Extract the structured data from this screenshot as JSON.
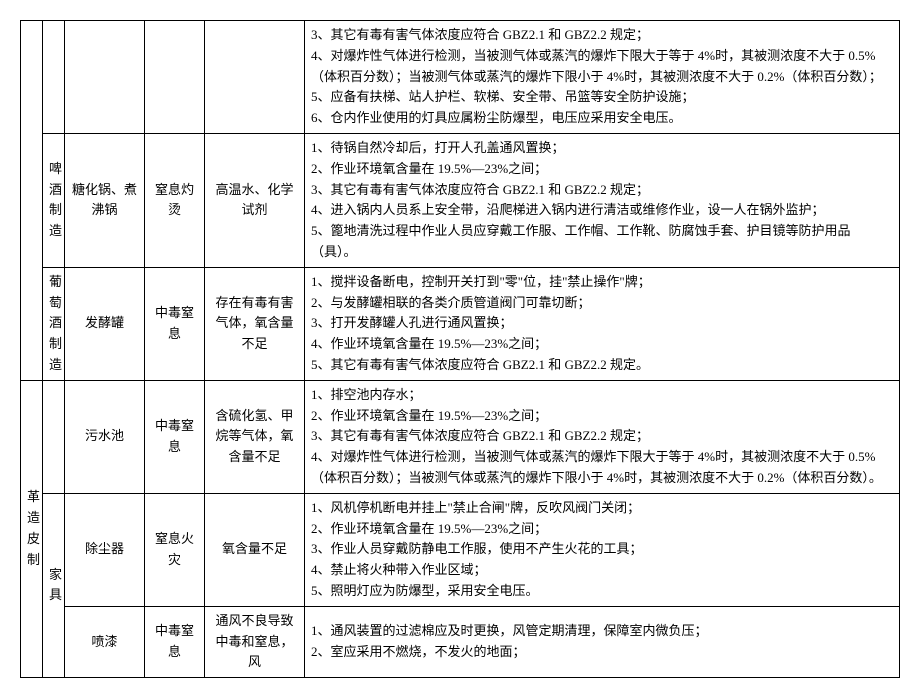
{
  "rows": [
    {
      "c0": "",
      "c1": "",
      "c2": "",
      "c3": "",
      "c4": "",
      "c5": "3、其它有毒有害气体浓度应符合 GBZ2.1 和 GBZ2.2 规定；\n4、对爆炸性气体进行检测，当被测气体或蒸汽的爆炸下限大于等于 4%时，其被测浓度不大于 0.5%（体积百分数）；当被测气体或蒸汽的爆炸下限小于 4%时，其被测浓度不大于 0.2%（体积百分数）；\n5、应备有扶梯、站人护栏、软梯、安全带、吊篮等安全防护设施；\n6、仓内作业使用的灯具应属粉尘防爆型，电压应采用安全电压。"
    },
    {
      "c0": "",
      "c1": "啤酒制造",
      "c2": "糖化锅、煮沸锅",
      "c3": "窒息灼烫",
      "c4": "高温水、化学试剂",
      "c5": "1、待锅自然冷却后，打开人孔盖通风置换；\n2、作业环境氧含量在 19.5%—23%之间；\n3、其它有毒有害气体浓度应符合 GBZ2.1 和 GBZ2.2 规定；\n4、进入锅内人员系上安全带，沿爬梯进入锅内进行清洁或维修作业，设一人在锅外监护；\n5、篦地清洗过程中作业人员应穿戴工作服、工作帽、工作靴、防腐蚀手套、护目镜等防护用品（具）。"
    },
    {
      "c0": "",
      "c1": "葡萄酒制造",
      "c2": "发酵罐",
      "c3": "中毒窒息",
      "c4": "存在有毒有害气体，氧含量不足",
      "c5": "1、搅拌设备断电，控制开关打到\"零\"位，挂\"禁止操作\"牌；\n2、与发酵罐相联的各类介质管道阀门可靠切断；\n3、打开发酵罐人孔进行通风置换；\n4、作业环境氧含量在 19.5%—23%之间；\n5、其它有毒有害气体浓度应符合 GBZ2.1 和 GBZ2.2 规定。"
    },
    {
      "c0": "革造皮制",
      "c1": "",
      "c2": "污水池",
      "c3": "中毒窒息",
      "c4": "含硫化氢、甲烷等气体，氧含量不足",
      "c5": "1、排空池内存水；\n2、作业环境氧含量在 19.5%—23%之间；\n3、其它有毒有害气体浓度应符合 GBZ2.1 和 GBZ2.2 规定；\n4、对爆炸性气体进行检测，当被测气体或蒸汽的爆炸下限大于等于 4%时，其被测浓度不大于 0.5%（体积百分数）；当被测气体或蒸汽的爆炸下限小于 4%时，其被测浓度不大于 0.2%（体积百分数）。"
    },
    {
      "c0": "",
      "c1": "家具",
      "c2": "除尘器",
      "c3": "窒息火灾",
      "c4": "氧含量不足",
      "c5": "1、风机停机断电并挂上\"禁止合闸\"牌，反吹风阀门关闭；\n2、作业环境氧含量在 19.5%—23%之间；\n3、作业人员穿戴防静电工作服，使用不产生火花的工具；\n4、禁止将火种带入作业区域；\n5、照明灯应为防爆型，采用安全电压。"
    },
    {
      "c0": "",
      "c1": "",
      "c2": "喷漆",
      "c3": "中毒窒息",
      "c4": "通风不良导致中毒和窒息，风",
      "c5": "1、通风装置的过滤棉应及时更换，风管定期清理，保障室内微负压；\n2、室应采用不燃烧，不发火的地面；"
    }
  ]
}
